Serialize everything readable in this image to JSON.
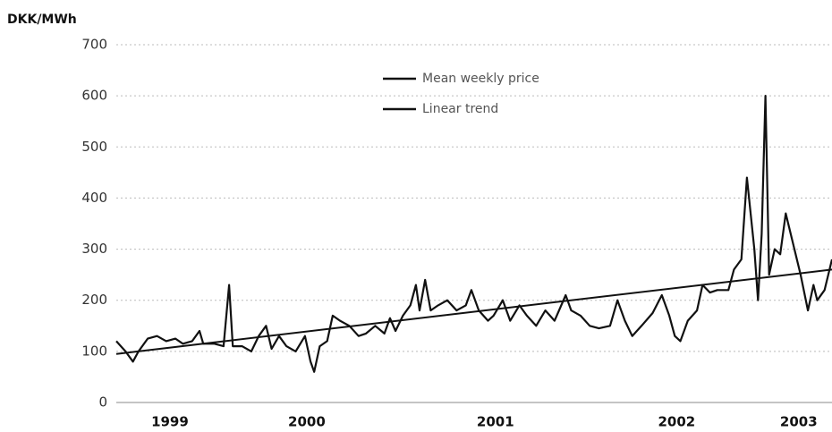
{
  "chart_data": {
    "type": "line",
    "ylabel": "DKK/MWh",
    "xlim": [
      1999.47,
      2003.34
    ],
    "xticks": [
      {
        "value": 1999.76,
        "label": "1999"
      },
      {
        "value": 2000.5,
        "label": "2000"
      },
      {
        "value": 2001.52,
        "label": "2001"
      },
      {
        "value": 2002.5,
        "label": "2002"
      },
      {
        "value": 2003.16,
        "label": "2003"
      }
    ],
    "ylim": [
      0,
      700
    ],
    "yticks": [
      0,
      100,
      200,
      300,
      400,
      500,
      600,
      700
    ],
    "grid": true,
    "legend": "top",
    "series": [
      {
        "name": "Mean weekly price",
        "color": "#111111",
        "x": [
          1999.47,
          1999.52,
          1999.56,
          1999.59,
          1999.64,
          1999.69,
          1999.74,
          1999.79,
          1999.83,
          1999.88,
          1999.92,
          1999.94,
          2000.0,
          2000.05,
          2000.08,
          2000.1,
          2000.15,
          2000.2,
          2000.24,
          2000.28,
          2000.31,
          2000.35,
          2000.39,
          2000.44,
          2000.49,
          2000.52,
          2000.54,
          2000.57,
          2000.61,
          2000.64,
          2000.68,
          2000.73,
          2000.78,
          2000.82,
          2000.87,
          2000.92,
          2000.95,
          2000.98,
          2001.02,
          2001.06,
          2001.09,
          2001.11,
          2001.14,
          2001.17,
          2001.21,
          2001.26,
          2001.31,
          2001.36,
          2001.39,
          2001.43,
          2001.48,
          2001.51,
          2001.56,
          2001.6,
          2001.65,
          2001.69,
          2001.74,
          2001.79,
          2001.84,
          2001.9,
          2001.93,
          2001.98,
          2002.03,
          2002.08,
          2002.14,
          2002.18,
          2002.22,
          2002.26,
          2002.31,
          2002.37,
          2002.42,
          2002.46,
          2002.49,
          2002.52,
          2002.56,
          2002.61,
          2002.64,
          2002.68,
          2002.72,
          2002.78,
          2002.81,
          2002.85,
          2002.88,
          2002.92,
          2002.94,
          2002.96,
          2002.98,
          2003.0,
          2003.03,
          2003.06,
          2003.09,
          2003.13,
          2003.17,
          2003.21,
          2003.24,
          2003.26,
          2003.3,
          2003.34
        ],
        "values": [
          120,
          100,
          80,
          100,
          125,
          130,
          120,
          125,
          115,
          120,
          140,
          115,
          115,
          110,
          230,
          110,
          110,
          100,
          130,
          150,
          105,
          130,
          110,
          100,
          130,
          80,
          60,
          110,
          120,
          170,
          160,
          150,
          130,
          135,
          150,
          135,
          165,
          140,
          170,
          190,
          230,
          180,
          240,
          180,
          190,
          200,
          180,
          190,
          220,
          180,
          160,
          170,
          200,
          160,
          190,
          170,
          150,
          180,
          160,
          210,
          180,
          170,
          150,
          145,
          150,
          200,
          160,
          130,
          150,
          175,
          210,
          170,
          130,
          120,
          160,
          180,
          230,
          215,
          220,
          220,
          260,
          280,
          440,
          300,
          200,
          330,
          600,
          250,
          300,
          290,
          370,
          310,
          250,
          180,
          230,
          200,
          220,
          280
        ]
      },
      {
        "name": "Linear trend",
        "color": "#111111",
        "x": [
          1999.47,
          2003.34
        ],
        "values": [
          95,
          260
        ]
      }
    ]
  }
}
